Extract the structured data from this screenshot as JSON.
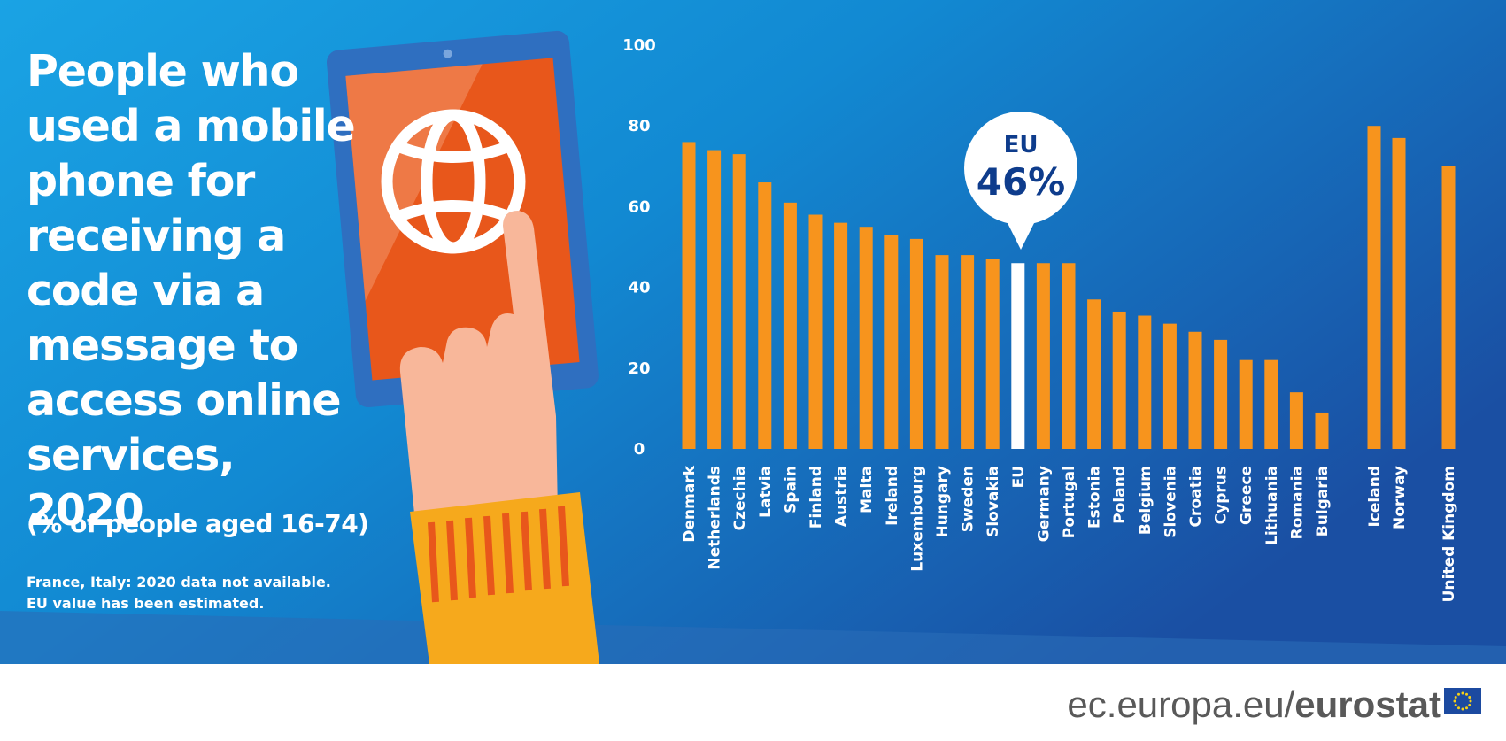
{
  "header": {
    "title": "People who used a mobile phone for receiving a code via a message to access online services, 2020",
    "subtitle": "(% of people aged 16-74)",
    "notes": [
      "France, Italy: 2020 data not available.",
      "EU value has been estimated."
    ]
  },
  "callout": {
    "label": "EU",
    "value": "46%"
  },
  "footer": {
    "site": "ec.europa.eu/",
    "brand": "eurostat"
  },
  "colors": {
    "bar": "#f7941d",
    "highlight": "#ffffff",
    "background": "#1b8fd6",
    "accent": "#0e3c8c"
  },
  "icons": [
    "smartphone-illustration",
    "globe-icon",
    "hand-illustration",
    "eu-flag-icon"
  ],
  "chart_data": {
    "type": "bar",
    "ylim": [
      0,
      100
    ],
    "yticks": [
      0,
      20,
      40,
      60,
      80,
      100
    ],
    "grid": false,
    "legend": "none",
    "highlight": "EU",
    "categories": [
      "Denmark",
      "Netherlands",
      "Czechia",
      "Latvia",
      "Spain",
      "Finland",
      "Austria",
      "Malta",
      "Ireland",
      "Luxembourg",
      "Hungary",
      "Sweden",
      "Slovakia",
      "EU",
      "Germany",
      "Portugal",
      "Estonia",
      "Poland",
      "Belgium",
      "Slovenia",
      "Croatia",
      "Cyprus",
      "Greece",
      "Lithuania",
      "Romania",
      "Bulgaria",
      "Iceland",
      "Norway",
      "United Kingdom"
    ],
    "values": [
      76,
      74,
      73,
      66,
      61,
      58,
      56,
      55,
      53,
      52,
      48,
      48,
      47,
      46,
      46,
      46,
      37,
      34,
      33,
      31,
      29,
      27,
      22,
      22,
      14,
      9,
      80,
      77,
      70
    ]
  }
}
